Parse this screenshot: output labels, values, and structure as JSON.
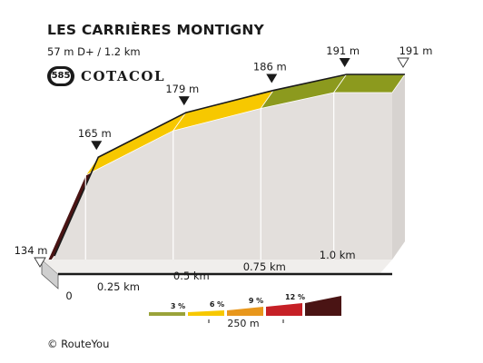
{
  "header": {
    "title": "LES CARRIÈRES MONTIGNY",
    "stats": "57 m D+ / 1.2 km",
    "badge_number": "585",
    "brand": "COTACOL"
  },
  "footer": {
    "copyright": "© RouteYou"
  },
  "colors": {
    "grade_0_3": "#9aa33a",
    "grade_3_6": "#f7c800",
    "grade_6_9": "#e8971c",
    "grade_9_12": "#c62026",
    "grade_12_plus": "#4a1414",
    "wall": "#e3dfdc",
    "base": "#cfcfcf"
  },
  "chart_data": {
    "type": "area",
    "title": "LES CARRIÈRES MONTIGNY",
    "xlabel": "",
    "ylabel": "",
    "x_unit": "km",
    "y_unit": "m",
    "profile": [
      {
        "x": 0.0,
        "y": 134,
        "label": "134 m",
        "marker": "open"
      },
      {
        "x": 0.15,
        "y": 165,
        "label": "165 m",
        "marker": "filled"
      },
      {
        "x": 0.45,
        "y": 179,
        "label": "179 m",
        "marker": "filled"
      },
      {
        "x": 0.75,
        "y": 186,
        "label": "186 m",
        "marker": "filled"
      },
      {
        "x": 1.0,
        "y": 191,
        "label": "191 m",
        "marker": "filled"
      },
      {
        "x": 1.2,
        "y": 191,
        "label": "191 m",
        "marker": "open"
      }
    ],
    "segment_grades": [
      "12 %",
      "3 %",
      "3 %",
      "0-3 %",
      "0-3 %"
    ],
    "segment_colors": [
      "#4a1414",
      "#f7c800",
      "#f7c800",
      "#8c9a1e",
      "#8c9a1e"
    ],
    "x_ticks": [
      {
        "x": 0,
        "label": "0"
      },
      {
        "x": 0.25,
        "label": "0.25 km"
      },
      {
        "x": 0.5,
        "label": "0.5 km"
      },
      {
        "x": 0.75,
        "label": "0.75 km"
      },
      {
        "x": 1.0,
        "label": "1.0 km"
      }
    ],
    "legend": {
      "items": [
        {
          "label": "3 %",
          "color": "#9aa33a"
        },
        {
          "label": "6 %",
          "color": "#f7c800"
        },
        {
          "label": "9 %",
          "color": "#e8971c"
        },
        {
          "label": "12 %",
          "color": "#c62026"
        },
        {
          "label": "",
          "color": "#4a1414"
        }
      ],
      "scale_label": "250 m"
    }
  }
}
